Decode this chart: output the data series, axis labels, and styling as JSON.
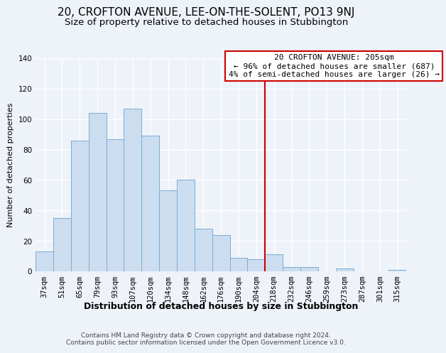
{
  "title": "20, CROFTON AVENUE, LEE-ON-THE-SOLENT, PO13 9NJ",
  "subtitle": "Size of property relative to detached houses in Stubbington",
  "xlabel": "Distribution of detached houses by size in Stubbington",
  "ylabel": "Number of detached properties",
  "categories": [
    "37sqm",
    "51sqm",
    "65sqm",
    "79sqm",
    "93sqm",
    "107sqm",
    "120sqm",
    "134sqm",
    "148sqm",
    "162sqm",
    "176sqm",
    "190sqm",
    "204sqm",
    "218sqm",
    "232sqm",
    "246sqm",
    "259sqm",
    "273sqm",
    "287sqm",
    "301sqm",
    "315sqm"
  ],
  "values": [
    13,
    35,
    86,
    104,
    87,
    107,
    89,
    53,
    60,
    28,
    24,
    9,
    8,
    11,
    3,
    3,
    0,
    2,
    0,
    0,
    1
  ],
  "bar_color": "#ccddf0",
  "bar_edge_color": "#7aadd4",
  "vline_x": 12.5,
  "vline_color": "#cc0000",
  "annotation_line1": "20 CROFTON AVENUE: 205sqm",
  "annotation_line2": "← 96% of detached houses are smaller (687)",
  "annotation_line3": "4% of semi-detached houses are larger (26) →",
  "annotation_box_color": "#ffffff",
  "annotation_box_edge_color": "#cc0000",
  "ylim": [
    0,
    140
  ],
  "yticks": [
    0,
    20,
    40,
    60,
    80,
    100,
    120,
    140
  ],
  "footer_text": "Contains HM Land Registry data © Crown copyright and database right 2024.\nContains public sector information licensed under the Open Government Licence v3.0.",
  "background_color": "#eef2f9",
  "grid_color": "#ffffff",
  "title_fontsize": 11,
  "subtitle_fontsize": 9.5,
  "xlabel_fontsize": 9,
  "ylabel_fontsize": 8,
  "tick_fontsize": 7.5,
  "annotation_fontsize": 8,
  "footer_fontsize": 6.5
}
